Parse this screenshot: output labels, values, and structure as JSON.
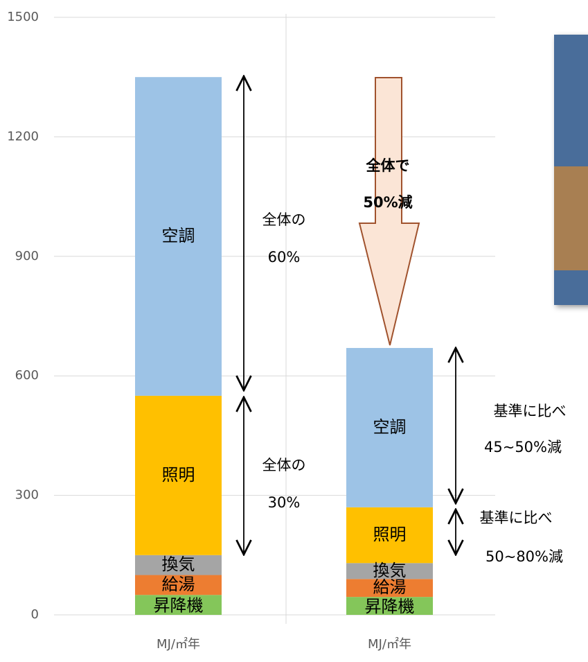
{
  "chart_data": {
    "type": "stacked-bar",
    "categories": [
      "MJ/㎡年",
      "MJ/㎡年"
    ],
    "series": [
      {
        "name": "昇降機",
        "color": "#84c65a",
        "values": [
          50,
          45
        ]
      },
      {
        "name": "給湯",
        "color": "#ed7d31",
        "values": [
          50,
          45
        ]
      },
      {
        "name": "換気",
        "color": "#a5a5a5",
        "values": [
          50,
          40
        ]
      },
      {
        "name": "照明",
        "color": "#ffc000",
        "values": [
          400,
          140
        ]
      },
      {
        "name": "空調",
        "color": "#9dc3e6",
        "values": [
          800,
          400
        ]
      }
    ],
    "ylim": [
      0,
      1500
    ],
    "yticks": [
      0,
      300,
      600,
      900,
      1200,
      1500
    ],
    "grid": true,
    "annotations": [
      {
        "lines": [
          "全体の",
          "60%"
        ]
      },
      {
        "lines": [
          "全体の",
          "30%"
        ]
      },
      {
        "lines": [
          "全体で",
          "50%減"
        ]
      },
      {
        "lines": [
          "基準に比べ",
          "45~50%減"
        ]
      },
      {
        "lines": [
          "基準に比べ",
          "50~80%減"
        ]
      }
    ]
  }
}
